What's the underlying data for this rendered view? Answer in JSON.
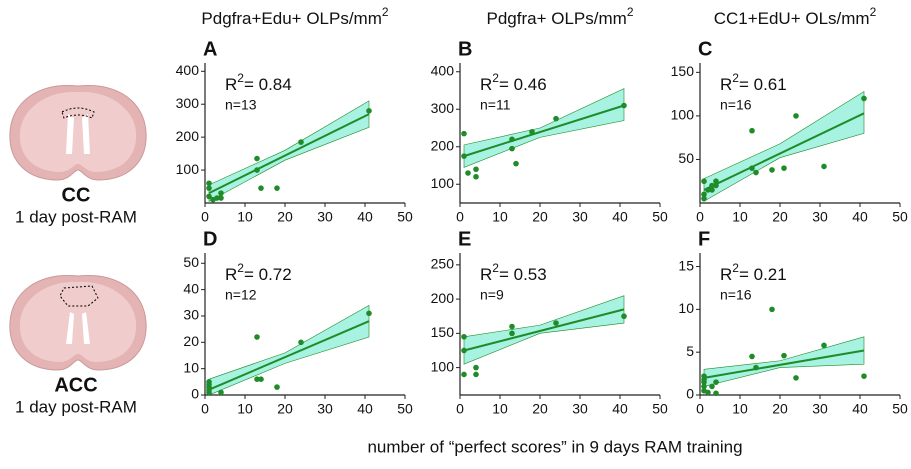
{
  "column_titles": [
    {
      "text": "Pdgfra+Edu+ OLPs/mm",
      "sup": "2"
    },
    {
      "text": "Pdgfra+ OLPs/mm",
      "sup": "2"
    },
    {
      "text": "CC1+EdU+ OLs/mm",
      "sup": "2"
    }
  ],
  "rows": [
    {
      "region": "CC",
      "caption": "1 day post-RAM"
    },
    {
      "region": "ACC",
      "caption": "1 day post-RAM"
    }
  ],
  "x_label": "number of “perfect scores” in 9 days RAM training",
  "chart_data": [
    {
      "type": "scatter",
      "panel": "A",
      "stat": "R",
      "stat_sup": "2",
      "stat_text": "= 0.84",
      "n_text": "n=13",
      "color": "#1e8c28",
      "band_color": "#5fe8c8",
      "x": [
        1,
        1,
        1,
        2,
        3,
        4,
        4,
        13,
        13,
        14,
        18,
        24,
        41
      ],
      "values": [
        60,
        45,
        20,
        10,
        15,
        30,
        15,
        135,
        100,
        45,
        45,
        185,
        280
      ],
      "fit": {
        "x": [
          1,
          41
        ],
        "y": [
          30,
          270
        ]
      },
      "band": {
        "x": [
          1,
          20,
          41
        ],
        "lower": [
          5,
          130,
          230
        ],
        "upper": [
          55,
          160,
          310
        ]
      },
      "xlim": [
        0,
        50
      ],
      "xticks": [
        0,
        10,
        20,
        30,
        40,
        50
      ],
      "ylim": [
        0,
        410
      ],
      "yticks": [
        100,
        200,
        300,
        400
      ]
    },
    {
      "type": "scatter",
      "panel": "B",
      "stat": "R",
      "stat_sup": "2",
      "stat_text": "= 0.46",
      "n_text": "n=11",
      "color": "#1e8c28",
      "band_color": "#5fe8c8",
      "x": [
        1,
        1,
        2,
        4,
        4,
        13,
        13,
        14,
        18,
        24,
        41
      ],
      "values": [
        235,
        175,
        130,
        140,
        120,
        220,
        195,
        155,
        240,
        275,
        310
      ],
      "fit": {
        "x": [
          1,
          41
        ],
        "y": [
          175,
          310
        ]
      },
      "band": {
        "x": [
          1,
          20,
          41
        ],
        "lower": [
          145,
          225,
          270
        ],
        "upper": [
          205,
          250,
          355
        ]
      },
      "xlim": [
        0,
        50
      ],
      "xticks": [
        0,
        10,
        20,
        30,
        40,
        50
      ],
      "ylim": [
        50,
        410
      ],
      "yticks": [
        100,
        200,
        300,
        400
      ]
    },
    {
      "type": "scatter",
      "panel": "C",
      "stat": "R",
      "stat_sup": "2",
      "stat_text": "= 0.61",
      "n_text": "n=16",
      "color": "#1e8c28",
      "band_color": "#5fe8c8",
      "x": [
        1,
        1,
        1,
        2,
        3,
        3,
        4,
        4,
        13,
        13,
        14,
        18,
        21,
        24,
        31,
        41
      ],
      "values": [
        25,
        10,
        5,
        15,
        20,
        15,
        25,
        20,
        83,
        40,
        35,
        38,
        40,
        100,
        42,
        120
      ],
      "fit": {
        "x": [
          1,
          41
        ],
        "y": [
          15,
          103
        ]
      },
      "band": {
        "x": [
          1,
          20,
          41
        ],
        "lower": [
          2,
          52,
          80
        ],
        "upper": [
          28,
          68,
          128
        ]
      },
      "xlim": [
        0,
        50
      ],
      "xticks": [
        0,
        10,
        20,
        30,
        40,
        50
      ],
      "ylim": [
        0,
        155
      ],
      "yticks": [
        50,
        100,
        150
      ]
    },
    {
      "type": "scatter",
      "panel": "D",
      "stat": "R",
      "stat_sup": "2",
      "stat_text": "= 0.72",
      "n_text": "n=12",
      "color": "#1e8c28",
      "band_color": "#5fe8c8",
      "x": [
        1,
        1,
        1,
        1,
        1,
        4,
        13,
        13,
        14,
        18,
        24,
        41
      ],
      "values": [
        5,
        4,
        3,
        2,
        1,
        1,
        22,
        6,
        6,
        3,
        20,
        31
      ],
      "fit": {
        "x": [
          1,
          41
        ],
        "y": [
          2,
          28
        ]
      },
      "band": {
        "x": [
          1,
          20,
          41
        ],
        "lower": [
          0,
          12,
          22
        ],
        "upper": [
          6,
          16,
          34
        ]
      },
      "xlim": [
        0,
        50
      ],
      "xticks": [
        0,
        10,
        20,
        30,
        40,
        50
      ],
      "ylim": [
        0,
        52
      ],
      "yticks": [
        0,
        10,
        20,
        30,
        40,
        50
      ]
    },
    {
      "type": "scatter",
      "panel": "E",
      "stat": "R",
      "stat_sup": "2",
      "stat_text": "= 0.53",
      "n_text": "n=9",
      "color": "#1e8c28",
      "band_color": "#5fe8c8",
      "x": [
        1,
        1,
        1,
        4,
        4,
        13,
        13,
        24,
        41
      ],
      "values": [
        145,
        125,
        90,
        100,
        90,
        160,
        150,
        165,
        175
      ],
      "fit": {
        "x": [
          1,
          41
        ],
        "y": [
          125,
          185
        ]
      },
      "band": {
        "x": [
          1,
          20,
          41
        ],
        "lower": [
          105,
          150,
          165
        ],
        "upper": [
          145,
          162,
          205
        ]
      },
      "xlim": [
        0,
        50
      ],
      "xticks": [
        0,
        10,
        20,
        30,
        40,
        50
      ],
      "ylim": [
        60,
        260
      ],
      "yticks": [
        100,
        150,
        200,
        250
      ]
    },
    {
      "type": "scatter",
      "panel": "F",
      "stat": "R",
      "stat_sup": "2",
      "stat_text": "= 0.21",
      "n_text": "n=16",
      "color": "#1e8c28",
      "band_color": "#5fe8c8",
      "x": [
        1,
        1,
        1,
        1,
        1,
        2,
        3,
        4,
        4,
        13,
        14,
        18,
        21,
        24,
        31,
        41
      ],
      "values": [
        2.2,
        1.8,
        1.5,
        1,
        0.5,
        0.3,
        1,
        1.5,
        0.2,
        4.5,
        3.2,
        10,
        4.6,
        2,
        5.8,
        2.2
      ],
      "fit": {
        "x": [
          1,
          41
        ],
        "y": [
          2,
          5.2
        ]
      },
      "band": {
        "x": [
          1,
          20,
          41
        ],
        "lower": [
          1,
          3.2,
          3.6
        ],
        "upper": [
          3,
          4,
          6.8
        ]
      },
      "xlim": [
        0,
        50
      ],
      "xticks": [
        0,
        10,
        20,
        30,
        40,
        50
      ],
      "ylim": [
        0,
        16
      ],
      "yticks": [
        0,
        5,
        10,
        15
      ]
    }
  ]
}
